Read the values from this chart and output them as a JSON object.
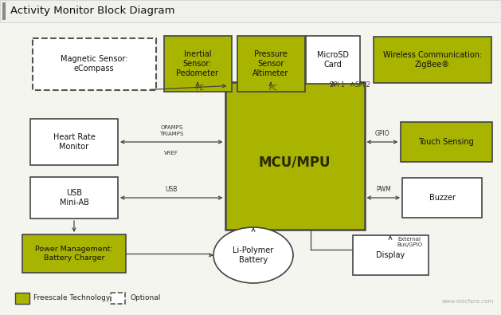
{
  "title": "Activity Monitor Block Diagram",
  "bg_color": "#f5f5f0",
  "green_color": "#a8b400",
  "white_box_color": "#ffffff",
  "box_edge_color": "#444444",
  "dashed_edge_color": "#555555",
  "text_color": "#111111",
  "arrow_color": "#444444",
  "legend_green_label": "Freescale Technology",
  "legend_dashed_label": "Optional"
}
